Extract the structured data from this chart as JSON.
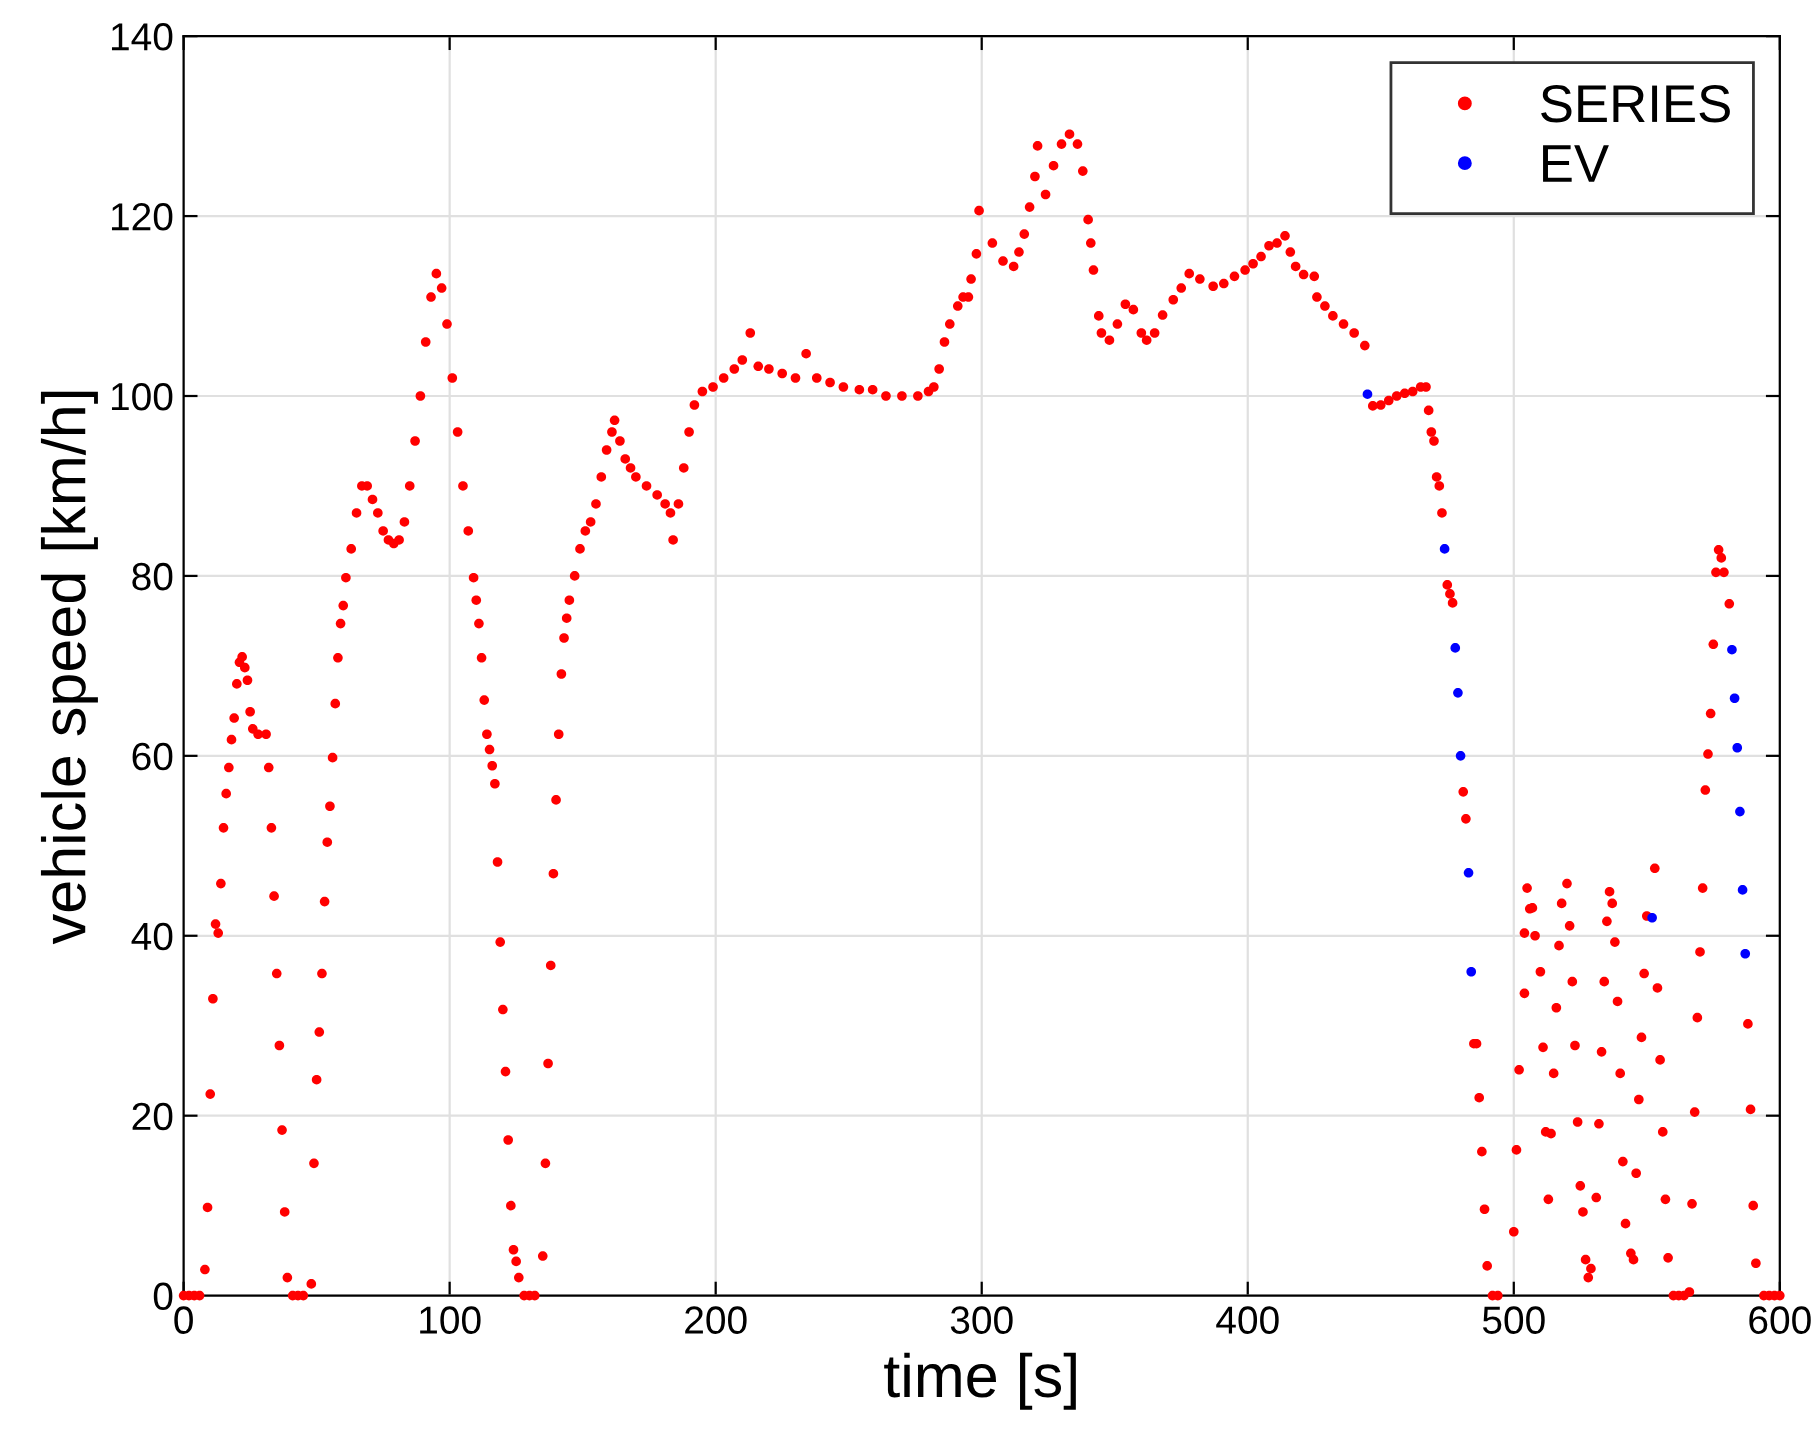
{
  "chart_data": {
    "type": "scatter",
    "xlabel": "time [s]",
    "ylabel": "vehicle speed [km/h]",
    "xlim": [
      0,
      600
    ],
    "ylim": [
      0,
      140
    ],
    "xticks": [
      0,
      100,
      200,
      300,
      400,
      500,
      600
    ],
    "yticks": [
      0,
      20,
      40,
      60,
      80,
      100,
      120,
      140
    ],
    "grid": true,
    "legend": "top right",
    "marker": "circle",
    "series": [
      {
        "name": "SERIES",
        "color": "#ff0000",
        "x": [
          0,
          2,
          4,
          6,
          8,
          9,
          10,
          11,
          12,
          13,
          14,
          15,
          16,
          17,
          18,
          19,
          20,
          21,
          22,
          23,
          24,
          25,
          26,
          28,
          31,
          32,
          33,
          34,
          35,
          36,
          37,
          38,
          39,
          41,
          43,
          45,
          48,
          49,
          50,
          51,
          52,
          53,
          54,
          55,
          56,
          57,
          58,
          59,
          60,
          61,
          63,
          65,
          67,
          69,
          71,
          73,
          75,
          77,
          79,
          81,
          83,
          85,
          87,
          89,
          91,
          93,
          95,
          97,
          99,
          101,
          103,
          105,
          107,
          109,
          110,
          111,
          112,
          113,
          114,
          115,
          116,
          117,
          118,
          119,
          120,
          121,
          122,
          123,
          124,
          125,
          126,
          128,
          130,
          132,
          135,
          136,
          137,
          138,
          139,
          140,
          141,
          142,
          143,
          144,
          145,
          147,
          149,
          151,
          153,
          155,
          157,
          159,
          161,
          162,
          164,
          166,
          168,
          170,
          174,
          178,
          181,
          183,
          184,
          186,
          188,
          190,
          192,
          195,
          199,
          203,
          207,
          210,
          213,
          216,
          220,
          225,
          230,
          234,
          238,
          243,
          248,
          254,
          259,
          264,
          270,
          276,
          280,
          282,
          284,
          286,
          288,
          291,
          293,
          295,
          296,
          298,
          299,
          304,
          308,
          312,
          314,
          316,
          318,
          320,
          321,
          324,
          327,
          330,
          333,
          336,
          338,
          340,
          341,
          342,
          344,
          345,
          348,
          351,
          354,
          357,
          360,
          362,
          365,
          368,
          372,
          375,
          378,
          382,
          387,
          391,
          395,
          399,
          402,
          405,
          408,
          411,
          414,
          416,
          418,
          421,
          425,
          426,
          429,
          432,
          436,
          440,
          444,
          447,
          450,
          453,
          456,
          459,
          462,
          465,
          467,
          468,
          469,
          470,
          471,
          472,
          473,
          475,
          476,
          477,
          481,
          482,
          485,
          486,
          487,
          488,
          489,
          490,
          492,
          494,
          500,
          501,
          502,
          504,
          504,
          505,
          506,
          507,
          508,
          510,
          511,
          512,
          513,
          514,
          515,
          516,
          517,
          518,
          520,
          521,
          522,
          523,
          524,
          525,
          526,
          527,
          528,
          529,
          531,
          532,
          533,
          534,
          535,
          536,
          537,
          538,
          539,
          540,
          541,
          542,
          544,
          545,
          546,
          547,
          548,
          549,
          550,
          553,
          554,
          555,
          556,
          557,
          558,
          560,
          562,
          564,
          566,
          567,
          568,
          569,
          570,
          571,
          572,
          573,
          574,
          575,
          576,
          577,
          578,
          579,
          581,
          588,
          589,
          590,
          591,
          594,
          596,
          598,
          600
        ],
        "values": [
          0,
          0,
          0,
          0,
          2.9,
          9.8,
          22.4,
          33,
          41.3,
          40.3,
          45.8,
          52,
          55.8,
          58.7,
          61.8,
          64.2,
          68,
          70.4,
          71,
          69.8,
          68.4,
          64.9,
          63,
          62.4,
          62.4,
          58.7,
          52,
          44.4,
          35.8,
          27.8,
          18.4,
          9.3,
          2,
          0,
          0,
          0,
          1.3,
          14.7,
          24,
          29.3,
          35.8,
          43.8,
          50.4,
          54.4,
          59.8,
          65.8,
          70.9,
          74.7,
          76.7,
          79.8,
          83,
          87,
          90,
          90,
          88.5,
          87,
          85,
          84,
          83.6,
          84,
          86,
          90,
          95,
          100,
          106,
          111,
          113.6,
          112,
          108,
          102,
          96,
          90,
          85,
          79.8,
          77.3,
          74.7,
          70.9,
          66.2,
          62.4,
          60.7,
          58.9,
          56.9,
          48.2,
          39.3,
          31.8,
          24.9,
          17.3,
          10,
          5.1,
          3.8,
          2,
          0,
          0,
          0,
          4.4,
          14.7,
          25.8,
          36.7,
          46.9,
          55.1,
          62.4,
          69.1,
          73.1,
          75.3,
          77.3,
          80,
          83,
          85,
          86,
          88,
          91,
          94,
          96,
          97.3,
          95,
          93,
          92,
          91,
          90,
          89,
          88,
          87,
          84,
          88,
          92,
          96,
          99,
          100.5,
          101,
          102,
          103,
          104,
          107,
          103.3,
          103,
          102.5,
          102,
          104.7,
          102,
          101.5,
          101,
          100.7,
          100.7,
          100,
          100,
          100,
          100.5,
          101,
          103,
          106,
          108,
          110,
          111,
          111,
          113,
          115.8,
          120.6,
          117,
          115,
          114.4,
          116,
          118,
          121,
          124.4,
          127.8,
          122.4,
          125.6,
          128,
          129.1,
          128,
          125,
          119.6,
          117,
          114,
          108.9,
          107,
          106.2,
          108,
          110.2,
          109.6,
          107,
          106.2,
          107,
          109,
          110.7,
          112,
          113.6,
          113,
          112.2,
          112.5,
          113.3,
          114,
          114.7,
          115.5,
          116.7,
          117,
          117.8,
          116,
          114.4,
          113.5,
          113.3,
          111,
          110,
          108.9,
          108,
          107,
          105.6,
          98.9,
          99,
          99.5,
          100,
          100.3,
          100.5,
          101,
          101,
          98.4,
          96,
          95,
          91,
          90,
          87,
          79,
          78,
          77,
          56,
          53,
          28,
          28,
          22,
          16,
          9.6,
          3.3,
          0,
          0,
          7.1,
          16.2,
          25.1,
          33.6,
          40.3,
          45.3,
          43,
          43.1,
          40,
          36,
          27.6,
          18.2,
          10.7,
          18,
          24.7,
          32,
          38.9,
          43.6,
          45.8,
          41.1,
          34.9,
          27.8,
          19.3,
          12.2,
          9.3,
          4,
          2,
          3,
          10.9,
          19.1,
          27.1,
          34.9,
          41.6,
          44.9,
          43.6,
          39.3,
          32.7,
          24.7,
          14.9,
          8,
          4.7,
          4,
          13.6,
          21.8,
          28.7,
          35.8,
          42.2,
          47.5,
          34.2,
          26.2,
          18.2,
          10.7,
          4.2,
          0,
          0,
          0,
          0.4,
          10.2,
          20.4,
          30.9,
          38.2,
          45.3,
          56.2,
          60.2,
          64.7,
          72.4,
          80.4,
          82.9,
          82,
          80.4,
          76.9,
          30.2,
          20.7,
          10,
          3.6,
          0,
          0,
          0,
          0
        ]
      },
      {
        "name": "EV",
        "color": "#0000ff",
        "x": [
          445,
          474,
          478,
          479,
          480,
          483,
          484,
          552,
          582,
          583,
          584,
          585,
          586,
          587
        ],
        "values": [
          100.2,
          83,
          72,
          67,
          60,
          47,
          36,
          42,
          71.8,
          66.4,
          60.9,
          53.8,
          45.1,
          38
        ]
      }
    ]
  }
}
